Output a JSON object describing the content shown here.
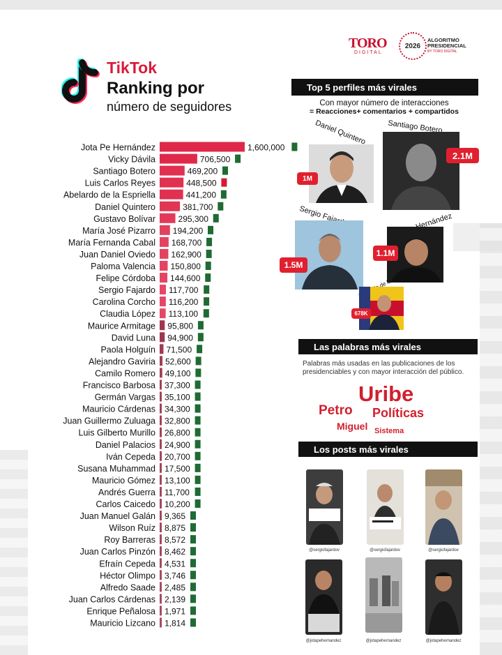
{
  "logos": {
    "toro": "TORO",
    "toro_sub": "DIGITAL",
    "year": "2026",
    "algo_line1": "ALGORITMO",
    "algo_line2": "PRESIDENCIAL",
    "algo_line3": "BY TORO DIGITAL"
  },
  "header": {
    "brand": "TikTok",
    "title": "Ranking por",
    "subtitle": "número de seguidores"
  },
  "chart_data": {
    "type": "bar",
    "orientation": "horizontal",
    "title": "Ranking por número de seguidores",
    "categories": [
      "Jota Pe Hernández",
      "Vicky Dávila",
      "Santiago Botero",
      "Luis Carlos Reyes",
      "Abelardo de la Espriella",
      "Daniel Quintero",
      "Gustavo Bolívar",
      "María José Pizarro",
      "María Fernanda Cabal",
      "Juan Daniel Oviedo",
      "Paloma Valencia",
      "Felipe Córdoba",
      "Sergio Fajardo",
      "Carolina Corcho",
      "Claudia López",
      "Maurice Armitage",
      "David Luna",
      "Paola Holguín",
      "Alejandro Gaviria",
      "Camilo Romero",
      "Francisco Barbosa",
      "Germán Vargas",
      "Mauricio Cárdenas",
      "Juan Guillermo Zuluaga",
      "Luis Gilberto Murillo",
      "Daniel Palacios",
      "Iván Cepeda",
      "Susana Muhammad",
      "Mauricio Gómez",
      "Andrés Guerra",
      "Carlos Caicedo",
      "Juan Manuel Galán",
      "Wilson Ruíz",
      "Roy Barreras",
      "Juan Carlos Pinzón",
      "Efraín Cepeda",
      "Héctor Olimpo",
      "Alfredo Saade",
      "Juan Carlos Cárdenas",
      "Enrique Peñalosa",
      "Mauricio Lizcano"
    ],
    "values": [
      1600000,
      706500,
      469200,
      448500,
      441200,
      381700,
      295300,
      194200,
      168700,
      162900,
      150800,
      144600,
      117700,
      116200,
      113100,
      95800,
      94900,
      71500,
      52600,
      49100,
      37300,
      35100,
      34300,
      32800,
      26800,
      24900,
      20700,
      17500,
      13100,
      11700,
      10200,
      9365,
      8875,
      8572,
      8462,
      4531,
      3746,
      2485,
      2139,
      1971,
      1814
    ],
    "labels": [
      "1,600,000",
      "706,500",
      "469,200",
      "448,500",
      "441,200",
      "381,700",
      "295,300",
      "194,200",
      "168,700",
      "162,900",
      "150,800",
      "144,600",
      "117,700",
      "116,200",
      "113,100",
      "95,800",
      "94,900",
      "71,500",
      "52,600",
      "49,100",
      "37,300",
      "35,100",
      "34,300",
      "32,800",
      "26,800",
      "24,900",
      "20,700",
      "17,500",
      "13,100",
      "11,700",
      "10,200",
      "9,365",
      "8,875",
      "8,572",
      "8,462",
      "4,531",
      "3,746",
      "2,485",
      "2,139",
      "1,971",
      "1,814"
    ],
    "party_colors": [
      "#1e6b33",
      "#1e6b33",
      "#1e6b33",
      "#d81b2f",
      "#1e6b33",
      "#1e6b33",
      "#1e6b33",
      "#1e6b33",
      "#1e6b33",
      "#1e6b33",
      "#1e6b33",
      "#1e6b33",
      "#1e6b33",
      "#1e6b33",
      "#1e6b33",
      "#1e6b33",
      "#1e6b33",
      "#1e6b33",
      "#1e6b33",
      "#1e6b33",
      "#1e6b33",
      "#1e6b33",
      "#1e6b33",
      "#1e6b33",
      "#1e6b33",
      "#1e6b33",
      "#1e6b33",
      "#1e6b33",
      "#1e6b33",
      "#1e6b33",
      "#1e6b33",
      "#1e6b33",
      "#1e6b33",
      "#1e6b33",
      "#1e6b33",
      "#1e6b33",
      "#1e6b33",
      "#1e6b33",
      "#1e6b33",
      "#1e6b33",
      "#1e6b33"
    ],
    "bar_color": "#e0294a",
    "bar_color_dark": "#8e1230"
  },
  "top5": {
    "header": "Top 5 perfiles más virales",
    "sub1": "Con mayor número de interacciones",
    "sub2": "= Reacciones+ comentarios + compartidos",
    "profiles": [
      {
        "name": "Daniel Quintero",
        "value": "1M"
      },
      {
        "name": "Santiago Botero",
        "value": "2.1M"
      },
      {
        "name": "Sergio Fajardo",
        "value": "1.5M"
      },
      {
        "name": "Jota Pe Hernández",
        "value": "1.1M"
      },
      {
        "name": "Abelardo de la Espriella",
        "value": "678K"
      }
    ]
  },
  "words": {
    "header": "Las palabras más virales",
    "description": "Palabras más usadas en las publicaciones de los presidenciables y con mayor interacción del público.",
    "list": [
      "Uribe",
      "Petro",
      "Políticas",
      "Miguel",
      "Sistema"
    ]
  },
  "posts": {
    "header": "Los posts más virales",
    "handles": [
      "@sergiofajardov",
      "@sergiofajardov",
      "@sergiofajardov",
      "@jotapehernandez",
      "@jotapehernandez",
      "@jotapehernandez"
    ]
  },
  "colors": {
    "accent": "#d81b3c",
    "dark": "#111111"
  }
}
